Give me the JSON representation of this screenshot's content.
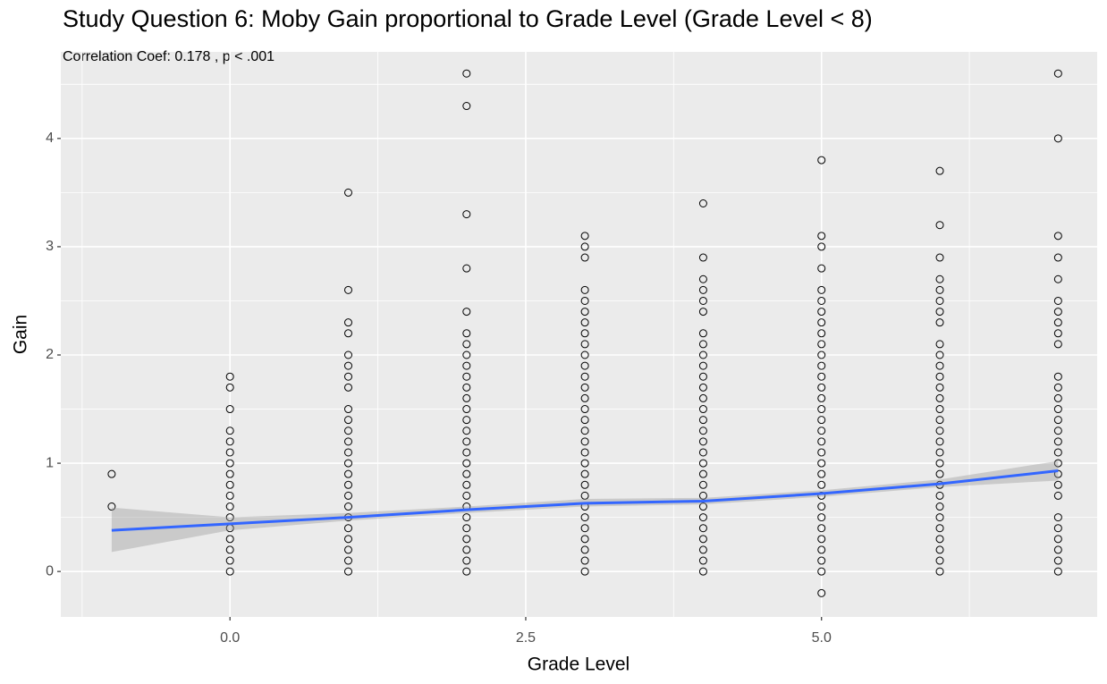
{
  "chart_data": {
    "type": "scatter",
    "title": "Study Question 6: Moby Gain proportional to Grade Level (Grade Level < 8)",
    "subtitle": "Correlation Coef:  0.178 , p < .001",
    "x_label": "Grade Level",
    "y_label": "Gain",
    "xlim": [
      -1.43,
      7.33
    ],
    "ylim": [
      -0.42,
      4.8
    ],
    "xticks": [
      {
        "value": 0,
        "label": "0.0"
      },
      {
        "value": 2.5,
        "label": "2.5"
      },
      {
        "value": 5,
        "label": "5.0"
      }
    ],
    "yticks": [
      0,
      1,
      2,
      3,
      4
    ],
    "minor_xticks": [
      -1.25,
      1.25,
      3.75,
      6.25
    ],
    "minor_yticks": [
      -0.5,
      0.5,
      1.5,
      2.5,
      3.5,
      4.5
    ],
    "grid": true,
    "point_color": "#000000",
    "x": [
      -1,
      -1,
      0,
      0,
      0,
      0,
      0,
      0,
      0,
      0,
      0,
      0,
      0,
      0,
      0,
      0,
      0,
      0,
      0,
      1,
      1,
      1,
      1,
      1,
      1,
      1,
      1,
      1,
      1,
      1,
      1,
      1,
      1,
      1,
      1,
      1,
      1,
      1,
      1,
      1,
      1,
      1,
      1,
      2,
      2,
      2,
      2,
      2,
      2,
      2,
      2,
      2,
      2,
      2,
      2,
      2,
      2,
      2,
      2,
      2,
      2,
      2,
      2,
      2,
      2,
      2,
      2,
      2,
      2,
      2,
      2,
      3,
      3,
      3,
      3,
      3,
      3,
      3,
      3,
      3,
      3,
      3,
      3,
      3,
      3,
      3,
      3,
      3,
      3,
      3,
      3,
      3,
      3,
      3,
      3,
      3,
      3,
      3,
      3,
      3,
      3,
      4,
      4,
      4,
      4,
      4,
      4,
      4,
      4,
      4,
      4,
      4,
      4,
      4,
      4,
      4,
      4,
      4,
      4,
      4,
      4,
      4,
      4,
      4,
      4,
      4,
      4,
      4,
      4,
      4,
      5,
      5,
      5,
      5,
      5,
      5,
      5,
      5,
      5,
      5,
      5,
      5,
      5,
      5,
      5,
      5,
      5,
      5,
      5,
      5,
      5,
      5,
      5,
      5,
      5,
      5,
      5,
      5,
      5,
      5,
      5,
      5,
      6,
      6,
      6,
      6,
      6,
      6,
      6,
      6,
      6,
      6,
      6,
      6,
      6,
      6,
      6,
      6,
      6,
      6,
      6,
      6,
      6,
      6,
      6,
      6,
      6,
      6,
      6,
      6,
      6,
      6,
      7,
      7,
      7,
      7,
      7,
      7,
      7,
      7,
      7,
      7,
      7,
      7,
      7,
      7,
      7,
      7,
      7,
      7,
      7,
      7,
      7,
      7,
      7,
      7,
      7,
      7,
      7,
      7
    ],
    "values": [
      0.6,
      0.9,
      0,
      0.1,
      0.2,
      0.3,
      0.4,
      0.5,
      0.6,
      0.7,
      0.8,
      0.9,
      1,
      1.1,
      1.2,
      1.3,
      1.5,
      1.7,
      1.8,
      0,
      0.1,
      0.2,
      0.3,
      0.4,
      0.5,
      0.6,
      0.7,
      0.8,
      0.9,
      1,
      1.1,
      1.2,
      1.3,
      1.4,
      1.5,
      1.7,
      1.8,
      1.9,
      2,
      2.2,
      2.3,
      2.6,
      3.5,
      0,
      0.1,
      0.2,
      0.3,
      0.4,
      0.5,
      0.6,
      0.7,
      0.8,
      0.9,
      1,
      1.1,
      1.2,
      1.3,
      1.4,
      1.5,
      1.6,
      1.7,
      1.8,
      1.9,
      2,
      2.1,
      2.2,
      2.4,
      2.8,
      3.3,
      4.3,
      4.6,
      0,
      0.1,
      0.2,
      0.3,
      0.4,
      0.5,
      0.6,
      0.7,
      0.8,
      0.9,
      1,
      1.1,
      1.2,
      1.3,
      1.4,
      1.5,
      1.6,
      1.7,
      1.8,
      1.9,
      2,
      2.1,
      2.2,
      2.3,
      2.4,
      2.5,
      2.6,
      2.9,
      3,
      3.1,
      0,
      0.1,
      0.2,
      0.3,
      0.4,
      0.5,
      0.6,
      0.7,
      0.8,
      0.9,
      1,
      1.1,
      1.2,
      1.3,
      1.4,
      1.5,
      1.6,
      1.7,
      1.8,
      1.9,
      2,
      2.1,
      2.2,
      2.4,
      2.5,
      2.6,
      2.7,
      2.9,
      3.4,
      -0.2,
      0,
      0.1,
      0.2,
      0.3,
      0.4,
      0.5,
      0.6,
      0.7,
      0.8,
      0.9,
      1,
      1.1,
      1.2,
      1.3,
      1.4,
      1.5,
      1.6,
      1.7,
      1.8,
      1.9,
      2,
      2.1,
      2.2,
      2.3,
      2.4,
      2.5,
      2.6,
      2.8,
      3,
      3.1,
      3.8,
      0,
      0.1,
      0.2,
      0.3,
      0.4,
      0.5,
      0.6,
      0.7,
      0.8,
      0.9,
      1,
      1.1,
      1.2,
      1.3,
      1.4,
      1.5,
      1.6,
      1.7,
      1.8,
      1.9,
      2,
      2.1,
      2.3,
      2.4,
      2.5,
      2.6,
      2.7,
      2.9,
      3.2,
      3.7,
      0,
      0.1,
      0.2,
      0.3,
      0.4,
      0.5,
      0.7,
      0.8,
      0.9,
      1,
      1.1,
      1.2,
      1.3,
      1.4,
      1.5,
      1.6,
      1.7,
      1.8,
      2.1,
      2.2,
      2.3,
      2.4,
      2.5,
      2.7,
      2.9,
      3.1,
      4,
      4.6
    ],
    "smooth": {
      "color": "#3366FF",
      "band_color": "#999999",
      "x": [
        -1,
        0,
        1,
        2,
        3,
        4,
        5,
        6,
        7
      ],
      "values": [
        0.38,
        0.44,
        0.5,
        0.57,
        0.63,
        0.65,
        0.72,
        0.81,
        0.93
      ],
      "lower": [
        0.18,
        0.38,
        0.47,
        0.54,
        0.6,
        0.62,
        0.69,
        0.78,
        0.84
      ],
      "upper": [
        0.59,
        0.5,
        0.54,
        0.6,
        0.67,
        0.68,
        0.75,
        0.85,
        1.02
      ]
    }
  }
}
